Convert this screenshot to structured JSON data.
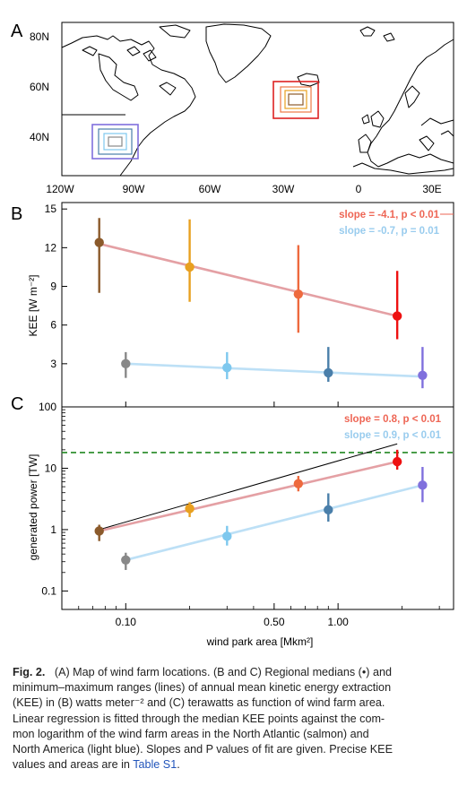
{
  "panels": {
    "a": "A",
    "b": "B",
    "c": "C"
  },
  "map": {
    "lat_labels": [
      "80N",
      "60N",
      "40N"
    ],
    "lon_labels": [
      "120W",
      "90W",
      "60W",
      "30W",
      "0",
      "30E"
    ]
  },
  "chart_data": [
    {
      "type": "scatter",
      "panel": "B",
      "ylabel": "KEE [W m⁻²]",
      "y_ticks": [
        "15",
        "12",
        "9",
        "6",
        "3"
      ],
      "ylim": [
        0,
        15.5
      ],
      "x_scale": "log",
      "series": [
        {
          "region": "North Atlantic",
          "x": [
            0.075,
            0.2,
            0.65,
            1.9
          ],
          "median": [
            12.4,
            10.5,
            8.4,
            6.7
          ],
          "min": [
            8.5,
            7.8,
            5.4,
            4.9
          ],
          "max": [
            14.3,
            14.2,
            12.2,
            10.2
          ],
          "colors": [
            "#8b5a2b",
            "#e8a020",
            "#ee6a3e",
            "#ee1111"
          ],
          "fit_color": "#e4a0a4",
          "fit_y_ends": [
            12.3,
            6.7
          ],
          "annotation": "slope = -4.1, p < 0.01",
          "annotation_color": "#ee6655"
        },
        {
          "region": "North America",
          "x": [
            0.1,
            0.3,
            0.9,
            2.5
          ],
          "median": [
            3.0,
            2.7,
            2.3,
            2.1
          ],
          "min": [
            1.9,
            1.8,
            1.6,
            1.1
          ],
          "max": [
            3.9,
            3.9,
            4.3,
            4.3
          ],
          "colors": [
            "#888888",
            "#7ec8ee",
            "#4a7faa",
            "#8070dd"
          ],
          "fit_color": "#bde0f6",
          "fit_y_ends": [
            3.0,
            2.0
          ],
          "annotation": "slope = -0.7, p = 0.01",
          "annotation_color": "#99ccee"
        }
      ]
    },
    {
      "type": "scatter",
      "panel": "C",
      "xlabel": "wind park area [Mkm²]",
      "ylabel": "generated power [TW]",
      "x_scale": "log",
      "y_scale": "log",
      "xlim": [
        0.05,
        3.5
      ],
      "ylim": [
        0.05,
        100
      ],
      "x_ticks": [
        "0.10",
        "0.50",
        "1.00"
      ],
      "y_ticks": [
        "100",
        "10",
        "1",
        "0.1"
      ],
      "reference_line_y": 18,
      "reference_line_color": "#228822",
      "linear_line_ends": [
        [
          0.075,
          1.0
        ],
        [
          1.9,
          25
        ]
      ],
      "series": [
        {
          "region": "North Atlantic",
          "x": [
            0.075,
            0.2,
            0.65,
            1.9
          ],
          "median": [
            0.95,
            2.2,
            5.6,
            12.8
          ],
          "min": [
            0.65,
            1.6,
            4.2,
            9.5
          ],
          "max": [
            1.2,
            2.8,
            7.5,
            20
          ],
          "colors": [
            "#8b5a2b",
            "#e8a020",
            "#ee6a3e",
            "#ee1111"
          ],
          "fit_color": "#e4a0a4",
          "fit_y_ends": [
            0.95,
            12.8
          ],
          "annotation": "slope = 0.8, p < 0.01",
          "annotation_color": "#ee6655"
        },
        {
          "region": "North America",
          "x": [
            0.1,
            0.3,
            0.9,
            2.5
          ],
          "median": [
            0.32,
            0.78,
            2.1,
            5.3
          ],
          "min": [
            0.22,
            0.55,
            1.35,
            2.8
          ],
          "max": [
            0.42,
            1.15,
            3.9,
            10.5
          ],
          "colors": [
            "#888888",
            "#7ec8ee",
            "#4a7faa",
            "#8070dd"
          ],
          "fit_color": "#bde0f6",
          "fit_y_ends": [
            0.32,
            5.3
          ],
          "annotation": "slope = 0.9, p < 0.01",
          "annotation_color": "#99ccee"
        }
      ]
    }
  ],
  "caption": {
    "line1a": "Fig. 2.",
    "line1b": "(A) Map of wind farm locations. (B and C) Regional medians (•) and",
    "line2": "minimum–maximum ranges (lines) of annual mean kinetic energy extraction",
    "line3": "(KEE) in (B) watts meter⁻² and (C) terawatts as function of wind farm area.",
    "line4": "Linear regression is fitted through the median KEE points against the com-",
    "line5": "mon logarithm of the wind farm areas in the North Atlantic (salmon) and",
    "line6": "North America (light blue). Slopes and P values of fit are given. Precise KEE",
    "line7a": "values and areas are in",
    "line7b": "Table S1",
    "line7c": "."
  }
}
